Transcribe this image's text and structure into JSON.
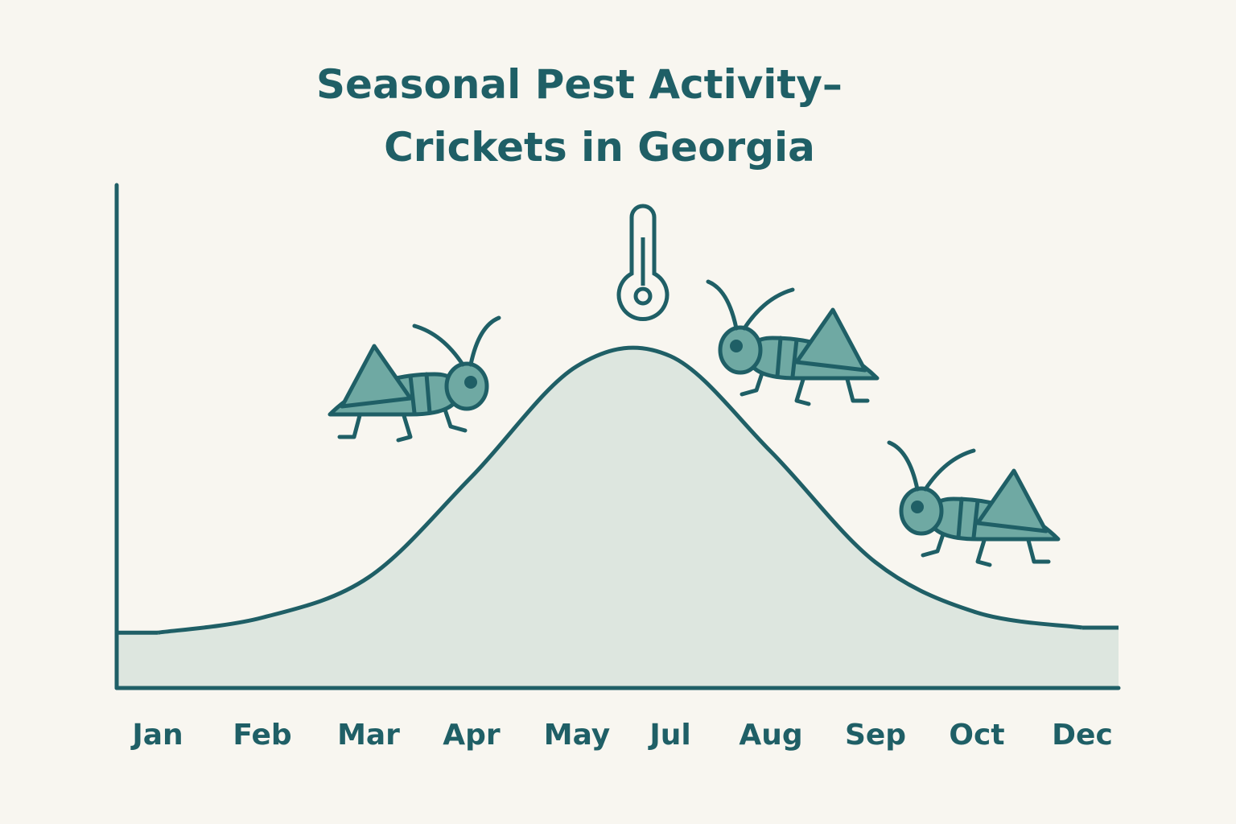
{
  "chart_data": {
    "type": "area",
    "title": [
      "Seasonal Pest Activity–",
      "Crickets in Georgia"
    ],
    "categories": [
      "Jan",
      "Feb",
      "Mar",
      "Apr",
      "May",
      "Jul",
      "Aug",
      "Sep",
      "Oct",
      "Dec"
    ],
    "values": [
      11,
      14,
      22,
      42,
      64,
      66,
      47,
      25,
      15,
      12
    ],
    "color": "#1f5f66",
    "fill": "#dde6df",
    "ylim": [
      0,
      100
    ]
  }
}
